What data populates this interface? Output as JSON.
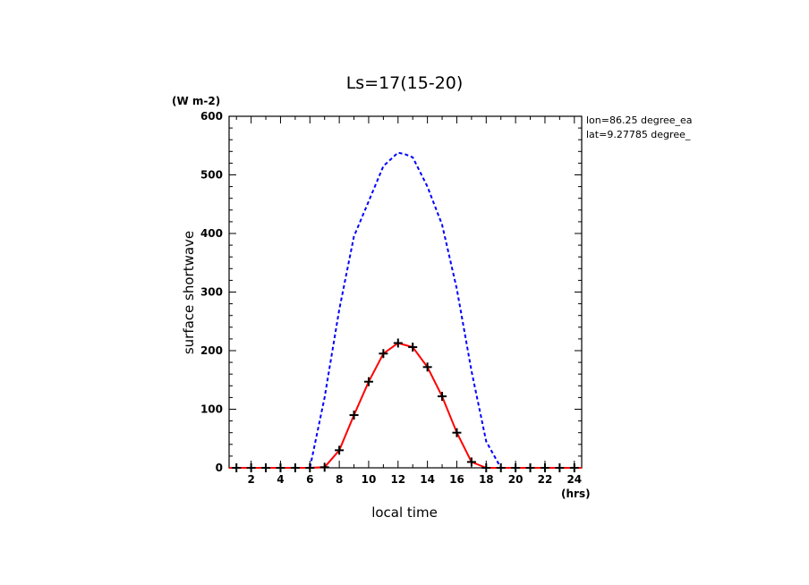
{
  "chart_data": {
    "type": "line",
    "title": "Ls=17(15-20)",
    "ylabel": "surface shortwave",
    "yunits": "(W m-2)",
    "xlabel": "local time",
    "xunits": "(hrs)",
    "annotations": [
      "lon=86.25 degree_ea",
      "lat=9.27785 degree_"
    ],
    "xlim": [
      0.5,
      24.5
    ],
    "ylim": [
      0,
      600
    ],
    "xticks": [
      2,
      4,
      6,
      8,
      10,
      12,
      14,
      16,
      18,
      20,
      22,
      24
    ],
    "yticks": [
      0,
      100,
      200,
      300,
      400,
      500,
      600
    ],
    "grid": false,
    "series": [
      {
        "color": "#0000ff",
        "style": "dashed",
        "x": [
          0.5,
          1,
          2,
          3,
          4,
          5,
          6,
          7,
          8,
          9,
          10,
          11,
          12,
          12.5,
          13,
          14,
          15,
          16,
          17,
          18,
          19,
          20,
          21,
          22,
          23,
          24,
          24.5
        ],
        "values": [
          0,
          0,
          0,
          0,
          0,
          0,
          0,
          120,
          270,
          395,
          455,
          515,
          538,
          535,
          530,
          480,
          415,
          305,
          165,
          45,
          0,
          0,
          0,
          0,
          0,
          0,
          0
        ]
      },
      {
        "color": "#ff0000",
        "style": "solid",
        "x": [
          0.5,
          1,
          2,
          3,
          4,
          5,
          6,
          7,
          8,
          9,
          10,
          11,
          12,
          13,
          14,
          15,
          16,
          17,
          18,
          19,
          20,
          21,
          22,
          23,
          24,
          24.5
        ],
        "values": [
          0,
          0,
          0,
          0,
          0,
          0,
          0,
          1,
          30,
          90,
          147,
          195,
          213,
          206,
          172,
          122,
          60,
          10,
          0,
          0,
          0,
          0,
          0,
          0,
          0,
          0
        ]
      },
      {
        "color": "#000000",
        "style": "markers",
        "marker": "+",
        "x": [
          1,
          2,
          3,
          4,
          5,
          6,
          7,
          8,
          9,
          10,
          11,
          12,
          13,
          14,
          15,
          16,
          17,
          18,
          19,
          20,
          21,
          22,
          23,
          24
        ],
        "values": [
          0,
          0,
          0,
          0,
          0,
          0,
          1,
          30,
          90,
          147,
          195,
          213,
          206,
          172,
          122,
          60,
          10,
          0,
          0,
          0,
          0,
          0,
          0,
          0
        ]
      }
    ]
  }
}
